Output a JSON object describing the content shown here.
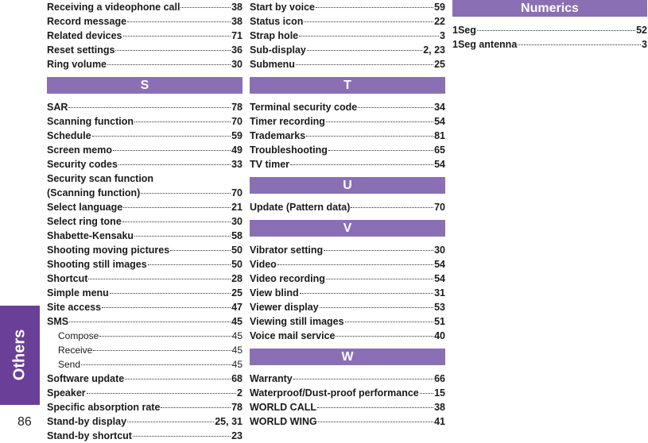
{
  "side_tab": {
    "label": "Others",
    "color": "#6a3f98"
  },
  "page_number": "86",
  "columns": [
    {
      "blocks": [
        {
          "header": "",
          "entries": [
            {
              "text": "Receiving a videophone call",
              "page": "38"
            },
            {
              "text": "Record message",
              "page": "38"
            },
            {
              "text": "Related devices",
              "page": "71"
            },
            {
              "text": "Reset settings",
              "page": "36"
            },
            {
              "text": "Ring volume",
              "page": "30"
            }
          ]
        },
        {
          "header": "S",
          "entries": [
            {
              "text": "SAR",
              "page": "78"
            },
            {
              "text": "Scanning function",
              "page": "70"
            },
            {
              "text": "Schedule",
              "page": "59"
            },
            {
              "text": "Screen memo",
              "page": "49"
            },
            {
              "text": "Security codes",
              "page": "33"
            },
            {
              "text": "Security scan function",
              "page": ""
            },
            {
              "text": "(Scanning function)",
              "page": "70"
            },
            {
              "text": "Select language",
              "page": "21"
            },
            {
              "text": "Select ring tone",
              "page": "30"
            },
            {
              "text": "Shabette-Kensaku",
              "page": "58"
            },
            {
              "text": "Shooting moving pictures",
              "page": "50"
            },
            {
              "text": "Shooting still images",
              "page": "50"
            },
            {
              "text": "Shortcut",
              "page": "28"
            },
            {
              "text": "Simple menu",
              "page": "25"
            },
            {
              "text": "Site access",
              "page": "47"
            },
            {
              "text": "SMS",
              "page": "45"
            },
            {
              "text": "Compose",
              "page": "45",
              "sub": true
            },
            {
              "text": "Receive",
              "page": "45",
              "sub": true
            },
            {
              "text": "Send",
              "page": "45",
              "sub": true
            },
            {
              "text": "Software update",
              "page": "68"
            },
            {
              "text": "Speaker",
              "page": "2"
            },
            {
              "text": "Specific absorption rate",
              "page": "78"
            },
            {
              "text": "Stand-by display",
              "page": "25, 31"
            },
            {
              "text": "Stand-by shortcut",
              "page": "23"
            }
          ]
        }
      ]
    },
    {
      "blocks": [
        {
          "header": "",
          "entries": [
            {
              "text": "Start by voice",
              "page": "59"
            },
            {
              "text": "Status icon",
              "page": "22"
            },
            {
              "text": "Strap hole",
              "page": "3"
            },
            {
              "text": "Sub-display",
              "page": "2, 23"
            },
            {
              "text": "Submenu",
              "page": "25"
            }
          ]
        },
        {
          "header": "T",
          "entries": [
            {
              "text": "Terminal security code",
              "page": "34"
            },
            {
              "text": "Timer recording",
              "page": "54"
            },
            {
              "text": "Trademarks",
              "page": "81"
            },
            {
              "text": "Troubleshooting",
              "page": "65"
            },
            {
              "text": "TV timer",
              "page": "54"
            }
          ]
        },
        {
          "header": "U",
          "entries": [
            {
              "text": "Update (Pattern data)",
              "page": "70"
            }
          ]
        },
        {
          "header": "V",
          "entries": [
            {
              "text": "Vibrator setting",
              "page": "30"
            },
            {
              "text": "Video",
              "page": "54"
            },
            {
              "text": "Video recording",
              "page": "54"
            },
            {
              "text": "View blind",
              "page": "31"
            },
            {
              "text": "Viewer display",
              "page": "53"
            },
            {
              "text": "Viewing still images",
              "page": "51"
            },
            {
              "text": "Voice mail service",
              "page": "40"
            }
          ]
        },
        {
          "header": "W",
          "entries": [
            {
              "text": "Warranty",
              "page": "66"
            },
            {
              "text": "Waterproof/Dust-proof performance",
              "page": "15"
            },
            {
              "text": "WORLD CALL",
              "page": "38"
            },
            {
              "text": "WORLD WING",
              "page": "41"
            }
          ]
        }
      ]
    },
    {
      "blocks": [
        {
          "header": "Numerics",
          "entries": [
            {
              "text": "1Seg",
              "page": "52"
            },
            {
              "text": "1Seg antenna",
              "page": "3"
            }
          ]
        }
      ]
    }
  ],
  "colors": {
    "header_bg": "#8a6fb5",
    "header_text": "#ffffff"
  }
}
